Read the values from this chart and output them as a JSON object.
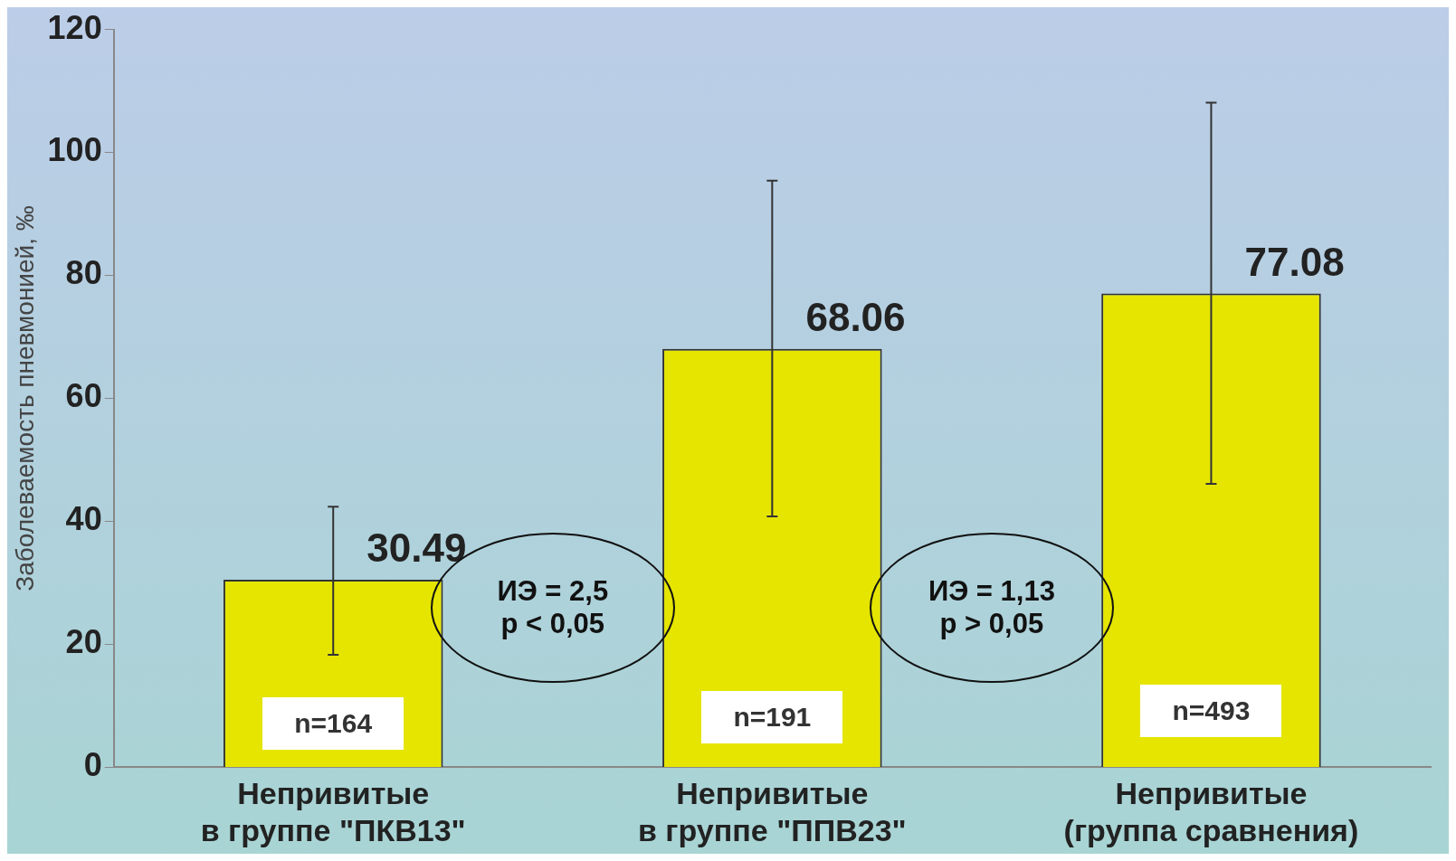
{
  "chart_data": {
    "type": "bar",
    "ylabel": "Заболеваемость пневмонией, ‰",
    "categories": [
      "Непривитые\nв группе \"ПКВ13\"",
      "Непривитые\nв группе \"ППВ23\"",
      "Непривитые\n(группа сравнения)"
    ],
    "values": [
      30.49,
      68.06,
      77.08
    ],
    "errors": [
      [
        18.3,
        42.4
      ],
      [
        40.8,
        95.4
      ],
      [
        46.1,
        108.1
      ]
    ],
    "color": "#e5e500",
    "data_labels": true,
    "ylim": [
      0,
      120
    ],
    "yticks": [
      0,
      20,
      40,
      60,
      80,
      100,
      120
    ],
    "grid": false,
    "legend": false,
    "annotations": [
      "ИЭ = 2,5\np < 0,05",
      "ИЭ = 1,13\np > 0,05",
      "n=164",
      "n=191",
      "n=493"
    ]
  }
}
